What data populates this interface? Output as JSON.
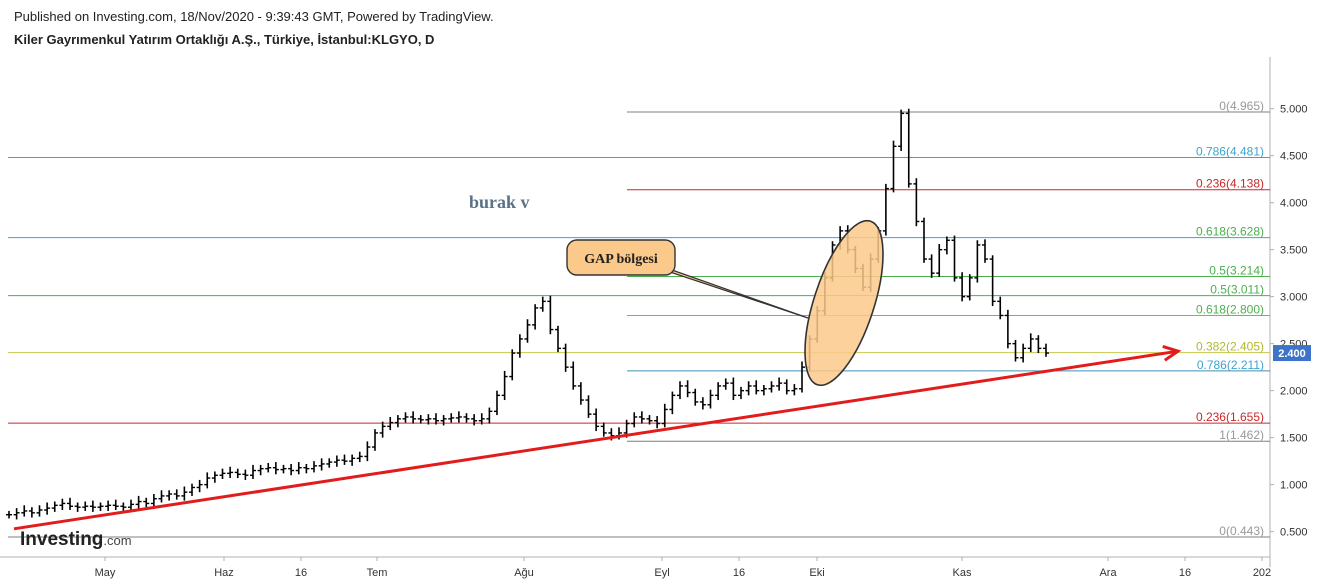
{
  "header": {
    "published": "Published on Investing.com, 18/Nov/2020 - 9:39:43 GMT, Powered by TradingView.",
    "title": "Kiler Gayrımenkul Yatırım Ortaklığı A.Ş., Türkiye, İstanbul:KLGYO, D"
  },
  "watermark": {
    "text": "burak v"
  },
  "callout": {
    "text": "GAP bölgesi"
  },
  "logo": {
    "text": "Investing",
    "suffix": ".com"
  },
  "price_badge": {
    "value": "2.400",
    "color": "#3d73c8"
  },
  "colors": {
    "trendline": "#e21b1b",
    "callout_fill": "#fbc98a",
    "candles": "#000000"
  },
  "chart_data": {
    "type": "ohlc",
    "title": "",
    "ylim": [
      0.23,
      5.55
    ],
    "y_ticks": [
      "0.500",
      "1.000",
      "1.500",
      "2.000",
      "2.500",
      "3.000",
      "3.500",
      "4.000",
      "4.500",
      "5.000"
    ],
    "x_ticks": [
      "May",
      "Haz",
      "16",
      "Tem",
      "Ağu",
      "Eyl",
      "16",
      "Eki",
      "Kas",
      "Ara",
      "16",
      "202"
    ],
    "fib_levels": [
      {
        "label": "0(4.965)",
        "value": 4.965,
        "color": "#999999",
        "line_color": "#7f7f7f",
        "scope": "right"
      },
      {
        "label": "0.786(4.481)",
        "value": 4.481,
        "color": "#3fa3cf",
        "line_color": "#3fa3cf",
        "scope": "full"
      },
      {
        "label": "0.236(4.138)",
        "value": 4.138,
        "color": "#c8282b",
        "line_color": "#c8282b",
        "scope": "right"
      },
      {
        "label": "0.618(3.628)",
        "value": 3.628,
        "color": "#4caf50",
        "line_color": "#3fa3cf",
        "scope": "full"
      },
      {
        "label": "0.5(3.214)",
        "value": 3.214,
        "color": "#4caf50",
        "line_color": "#4caf50",
        "scope": "right"
      },
      {
        "label": "0.5(3.011)",
        "value": 3.011,
        "color": "#4caf50",
        "line_color": "#4caf50",
        "scope": "full"
      },
      {
        "label": "0.618(2.800)",
        "value": 2.8,
        "color": "#4caf50",
        "line_color": "#4cbfa0",
        "scope": "right"
      },
      {
        "label": "0.382(2.405)",
        "value": 2.405,
        "color": "#b2b82d",
        "line_color": "#c6c84a",
        "scope": "full"
      },
      {
        "label": "0.786(2.211)",
        "value": 2.211,
        "color": "#3fa3cf",
        "line_color": "#3f8fb8",
        "scope": "right"
      },
      {
        "label": "0.236(1.655)",
        "value": 1.655,
        "color": "#c8282b",
        "line_color": "#c8282b",
        "scope": "full"
      },
      {
        "label": "1(1.462)",
        "value": 1.462,
        "color": "#999999",
        "line_color": "#7f7f7f",
        "scope": "right"
      },
      {
        "label": "0(0.443)",
        "value": 0.443,
        "color": "#999999",
        "line_color": "#7f7f7f",
        "scope": "full"
      }
    ],
    "trendline": {
      "from": {
        "month": "Nis",
        "price": 0.53
      },
      "to": {
        "month": "Ara",
        "price": 2.42
      }
    },
    "series": [
      {
        "trend": [
          0.68,
          0.7,
          0.72,
          0.7,
          0.73,
          0.75,
          0.78,
          0.8,
          0.77,
          0.76,
          0.77,
          0.76,
          0.77,
          0.78,
          0.77,
          0.76,
          0.79,
          0.82,
          0.8,
          0.85,
          0.88,
          0.9,
          0.88,
          0.92,
          0.97,
          1.0,
          1.07,
          1.1,
          1.12,
          1.13,
          1.11,
          1.1,
          1.15,
          1.17,
          1.18,
          1.16,
          1.17,
          1.15,
          1.18,
          1.17,
          1.2,
          1.22,
          1.24,
          1.26,
          1.25,
          1.28,
          1.3,
          1.4,
          1.55,
          1.62,
          1.66,
          1.7,
          1.72,
          1.7,
          1.69,
          1.7,
          1.68,
          1.7,
          1.71,
          1.72,
          1.7,
          1.68,
          1.7,
          1.78,
          1.95,
          2.15,
          2.4,
          2.55,
          2.7,
          2.88,
          2.95,
          2.65,
          2.45,
          2.25,
          2.05,
          1.9,
          1.75,
          1.62,
          1.55,
          1.52,
          1.55,
          1.65,
          1.72,
          1.7,
          1.68,
          1.65,
          1.8,
          1.95,
          2.05,
          1.98,
          1.88,
          1.85,
          1.95,
          2.05,
          2.08,
          1.95,
          2.0,
          2.05,
          2.0,
          2.02,
          2.05,
          2.08,
          2.0,
          2.02,
          2.25,
          2.55,
          2.85,
          3.2,
          3.55,
          3.7,
          3.5,
          3.3,
          3.1,
          3.4,
          3.7,
          4.15,
          4.6,
          4.95,
          4.2,
          3.8,
          3.4,
          3.25,
          3.5,
          3.6,
          3.2,
          3.0,
          3.2,
          3.55,
          3.4,
          2.95,
          2.8,
          2.5,
          2.35,
          2.45,
          2.55,
          2.45,
          2.4
        ]
      }
    ]
  }
}
